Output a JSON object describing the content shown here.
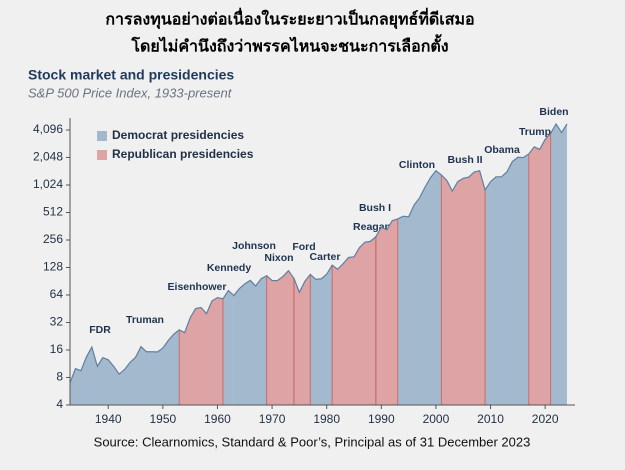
{
  "heading": [
    "การลงทุนอย่างต่อเนื่องในระยะยาวเป็นกลยุทธ์ที่ดีเสมอ",
    "โดยไม่คำนึงถึงว่าพรรคไหนจะชนะการเลือกตั้ง"
  ],
  "source": "Source: Clearnomics, Standard & Poor’s, Principal as of 31 December 2023",
  "chart_data": {
    "type": "area",
    "title": "Stock market and presidencies",
    "subtitle": "S&P 500 Price Index, 1933-present",
    "log_scale": true,
    "legend": "upper left",
    "line_color": "#5f7f9f",
    "x": [
      1933,
      1934,
      1935,
      1936,
      1937,
      1938,
      1939,
      1940,
      1941,
      1942,
      1943,
      1944,
      1945,
      1946,
      1947,
      1948,
      1949,
      1950,
      1951,
      1952,
      1953,
      1954,
      1955,
      1956,
      1957,
      1958,
      1959,
      1960,
      1961,
      1962,
      1963,
      1964,
      1965,
      1966,
      1967,
      1968,
      1969,
      1970,
      1971,
      1972,
      1973,
      1974,
      1975,
      1976,
      1977,
      1978,
      1979,
      1980,
      1981,
      1982,
      1983,
      1984,
      1985,
      1986,
      1987,
      1988,
      1989,
      1990,
      1991,
      1992,
      1993,
      1994,
      1995,
      1996,
      1997,
      1998,
      1999,
      2000,
      2001,
      2002,
      2003,
      2004,
      2005,
      2006,
      2007,
      2008,
      2009,
      2010,
      2011,
      2012,
      2013,
      2014,
      2015,
      2016,
      2017,
      2018,
      2019,
      2020,
      2021,
      2022,
      2023,
      2024
    ],
    "values": [
      7,
      10,
      9.5,
      13.4,
      17.2,
      10.6,
      13.2,
      12.5,
      10.6,
      8.7,
      9.8,
      11.7,
      13.3,
      17.4,
      15.3,
      15.3,
      15.2,
      16.8,
      20.4,
      23.8,
      26.6,
      24.8,
      36,
      45.5,
      46.7,
      40,
      55.2,
      59.9,
      58.1,
      71.6,
      63.1,
      75,
      84.8,
      92.4,
      80.3,
      96.5,
      103.9,
      92.1,
      92.2,
      102.1,
      118.1,
      97.6,
      68.6,
      90.2,
      107.5,
      95.1,
      96.1,
      107.9,
      135.8,
      122.6,
      140.6,
      164.9,
      167.2,
      211.3,
      242.2,
      247.1,
      277.7,
      353.4,
      330.2,
      417.1,
      435.7,
      466.5,
      459.3,
      615.9,
      740.7,
      970.4,
      1229,
      1469,
      1320,
      1148,
      880,
      1112,
      1212,
      1248,
      1418,
      1468,
      903,
      1115,
      1258,
      1258,
      1426,
      1848,
      2059,
      2044,
      2239,
      2674,
      2507,
      3231,
      3756,
      4766,
      3840,
      4770
    ],
    "xlim": [
      1933,
      2024
    ],
    "xticks": [
      1940,
      1950,
      1960,
      1970,
      1980,
      1990,
      2000,
      2010,
      2020
    ],
    "ylim": [
      4,
      5540
    ],
    "yticks": [
      4,
      8,
      16,
      32,
      64,
      128,
      256,
      512,
      {
        "value": 1024,
        "label": "1,024"
      },
      {
        "value": 2048,
        "label": "2,048"
      },
      {
        "value": 4096,
        "label": "4,096"
      }
    ],
    "series": [
      {
        "name": "Democrat presidencies",
        "color": "#a3b9ce",
        "periods": [
          {
            "label": "FDR",
            "start": 1933,
            "end": 1945
          },
          {
            "label": "Truman",
            "start": 1945,
            "end": 1953
          },
          {
            "label": "Kennedy",
            "start": 1961,
            "end": 1963
          },
          {
            "label": "Johnson",
            "start": 1963,
            "end": 1969
          },
          {
            "label": "Carter",
            "start": 1977,
            "end": 1981
          },
          {
            "label": "Clinton",
            "start": 1993,
            "end": 2001
          },
          {
            "label": "Obama",
            "start": 2009,
            "end": 2017
          },
          {
            "label": "Biden",
            "start": 2021,
            "end": 2024
          }
        ]
      },
      {
        "name": "Republican presidencies",
        "color": "#dea3a5",
        "periods": [
          {
            "label": "Eisenhower",
            "start": 1953,
            "end": 1961
          },
          {
            "label": "Nixon",
            "start": 1969,
            "end": 1974
          },
          {
            "label": "Ford",
            "start": 1974,
            "end": 1977
          },
          {
            "label": "Reagan",
            "start": 1981,
            "end": 1989
          },
          {
            "label": "Bush I",
            "start": 1989,
            "end": 1993
          },
          {
            "label": "Bush II",
            "start": 2001,
            "end": 2009
          },
          {
            "label": "Trump",
            "start": 2017,
            "end": 2021
          }
        ]
      }
    ]
  }
}
